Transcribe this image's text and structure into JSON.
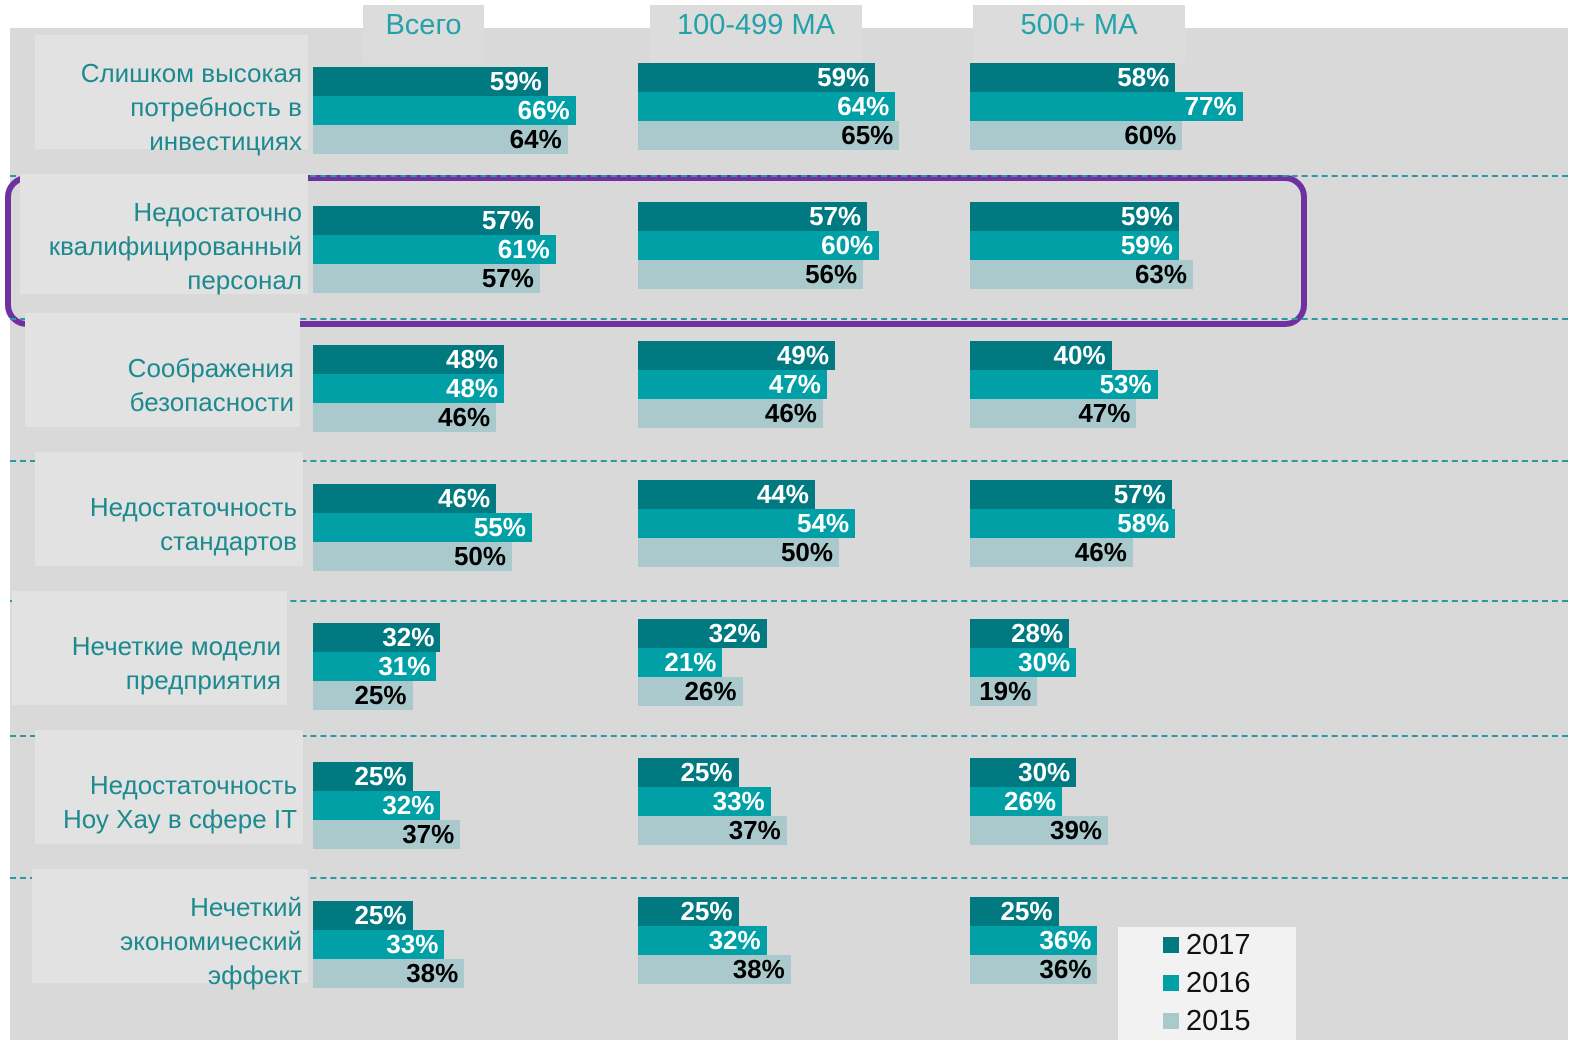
{
  "chart_data": {
    "type": "bar",
    "panels": [
      "Всего",
      "100-499 МА",
      "500+ МА"
    ],
    "categories": [
      "Слишком высокая\nпотребность в\nинвестициях",
      "Недостаточно\nквалифицированный\nперсонал",
      "Соображения\nбезопасности",
      "Недостаточность\nстандартов",
      "Нечеткие модели\nпредприятия",
      "Недостаточность\nНоу Хау в сфере IT",
      "Нечеткий\nэкономический\nэффект"
    ],
    "series": [
      {
        "name": "2017",
        "color": "#007a80",
        "values": [
          [
            59,
            57,
            48,
            46,
            32,
            25,
            25
          ],
          [
            59,
            57,
            49,
            44,
            32,
            25,
            25
          ],
          [
            58,
            59,
            40,
            57,
            28,
            30,
            25
          ]
        ],
        "value_labels": [
          [
            "59%",
            "57%",
            "48%",
            "46%",
            "32%",
            "25%",
            "25%"
          ],
          [
            "59%",
            "57%",
            "49%",
            "44%",
            "32%",
            "25%",
            "25%"
          ],
          [
            "58%",
            "59%",
            "40%",
            "57%",
            "28%",
            "30%",
            "25%"
          ]
        ]
      },
      {
        "name": "2016",
        "color": "#00a0a6",
        "values": [
          [
            66,
            61,
            48,
            55,
            31,
            32,
            33
          ],
          [
            64,
            60,
            47,
            54,
            21,
            33,
            32
          ],
          [
            77,
            59,
            53,
            58,
            30,
            26,
            36
          ]
        ],
        "value_labels": [
          [
            "66%",
            "61%",
            "48%",
            "55%",
            "31%",
            "32%",
            "33%"
          ],
          [
            "64%",
            "60%",
            "47%",
            "54%",
            "21%",
            "33%",
            "32%"
          ],
          [
            "77%",
            "59%",
            "53%",
            "58%",
            "30%",
            "26%",
            "36%"
          ]
        ]
      },
      {
        "name": "2015",
        "color": "#a9c9cd",
        "values": [
          [
            64,
            57,
            46,
            50,
            25,
            37,
            38
          ],
          [
            65,
            56,
            46,
            50,
            26,
            37,
            38
          ],
          [
            60,
            63,
            47,
            46,
            19,
            39,
            36
          ]
        ],
        "value_labels": [
          [
            "64%",
            "57%",
            "46%",
            "50%",
            "25%",
            "37%",
            "38%"
          ],
          [
            "65%",
            "56%",
            "46%",
            "50%",
            "26%",
            "37%",
            "38%"
          ],
          [
            "60%",
            "63%",
            "47%",
            "46%",
            "19%",
            "39%",
            "36%"
          ]
        ]
      }
    ]
  }
}
